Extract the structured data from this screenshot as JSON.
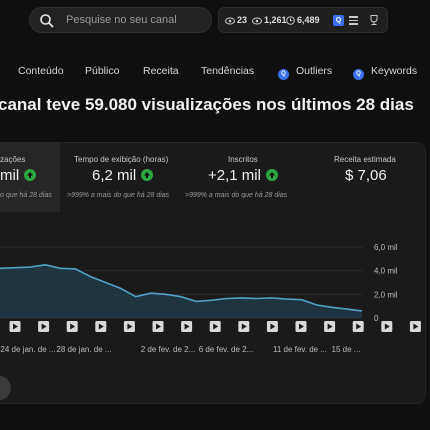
{
  "search": {
    "placeholder": "Pesquise no seu canal"
  },
  "stats": {
    "videos": "23",
    "views": "1,261",
    "watch": "6,489",
    "ext_label": "Q"
  },
  "tabs": [
    {
      "label": "Conteúdo"
    },
    {
      "label": "Público"
    },
    {
      "label": "Receita"
    },
    {
      "label": "Tendências"
    },
    {
      "label": "Outliers",
      "icon": "Q"
    },
    {
      "label": "Keywords",
      "icon": "Q"
    }
  ],
  "headline": "canal teve 59.080 visualizações nos últimos 28 dias",
  "metrics": [
    {
      "label": "zações",
      "value": "mil",
      "sub": "o que há 28 dias"
    },
    {
      "label": "Tempo de exibição (horas)",
      "value": "6,2 mil",
      "sub": ">999% a mais do que há 28 dias"
    },
    {
      "label": "Inscritos",
      "value": "+2,1 mil",
      "sub": ">999% a mais do que há 28 dias"
    },
    {
      "label": "Receita estimada",
      "value": "$ 7,06",
      "sub": ""
    }
  ],
  "colors": {
    "accent": "#3b6ff0",
    "positive": "#2ba640",
    "line": "#4fa3c7",
    "fill": "#203a48"
  },
  "chart_data": {
    "type": "area",
    "y_ticks": [
      "6,0 mil",
      "4,0 mil",
      "2,0 mil",
      "0"
    ],
    "ylim": [
      0,
      6000
    ],
    "x_labels": [
      "24 de jan. de ...",
      "28 de jan. de ...",
      "2 de fev. de 2...",
      "6 de fev. de 2...",
      "11 de fev. de ...",
      "15 de ..."
    ],
    "values": [
      4200,
      4250,
      4300,
      4500,
      4200,
      4150,
      3500,
      3000,
      2500,
      1800,
      2100,
      2000,
      1800,
      1400,
      1500,
      1650,
      1700,
      1650,
      1700,
      1600,
      1550,
      1100,
      900,
      750,
      600
    ],
    "marker_count": 15,
    "grid": true
  }
}
